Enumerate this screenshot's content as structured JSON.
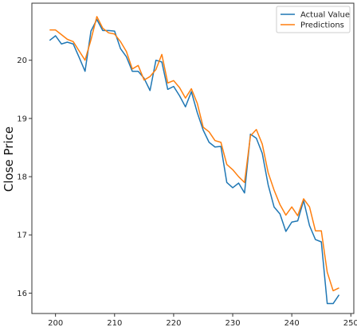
{
  "chart_data": {
    "type": "line",
    "title": "",
    "xlabel": "",
    "ylabel": "Close Price",
    "xlim": [
      196,
      250.5
    ],
    "ylim": [
      15.65,
      20.98
    ],
    "xticks": [
      200,
      210,
      220,
      230,
      240,
      250
    ],
    "xtick_labels": [
      "200",
      "210",
      "220",
      "230",
      "240",
      "250"
    ],
    "yticks": [
      16,
      17,
      18,
      19,
      20
    ],
    "ytick_labels": [
      "16",
      "17",
      "18",
      "19",
      "20"
    ],
    "grid": false,
    "legend_position": "top-right",
    "x": [
      199,
      200,
      201,
      202,
      203,
      204,
      205,
      206,
      207,
      208,
      209,
      210,
      211,
      212,
      213,
      214,
      215,
      216,
      217,
      218,
      219,
      220,
      221,
      222,
      223,
      224,
      225,
      226,
      227,
      228,
      229,
      230,
      231,
      232,
      233,
      234,
      235,
      236,
      237,
      238,
      239,
      240,
      241,
      242,
      243,
      244,
      245,
      246,
      247,
      248
    ],
    "series": [
      {
        "name": "Actual Value",
        "color": "#1f77b4",
        "values": [
          20.34,
          20.42,
          20.28,
          20.31,
          20.28,
          20.05,
          19.81,
          20.5,
          20.7,
          20.51,
          20.51,
          20.5,
          20.2,
          20.06,
          19.81,
          19.81,
          19.69,
          19.48,
          20.0,
          19.97,
          19.5,
          19.55,
          19.39,
          19.2,
          19.46,
          19.1,
          18.8,
          18.59,
          18.51,
          18.52,
          17.9,
          17.81,
          17.89,
          17.72,
          18.73,
          18.66,
          18.4,
          17.86,
          17.48,
          17.36,
          17.06,
          17.22,
          17.24,
          17.59,
          17.16,
          16.92,
          16.88,
          15.82,
          15.82,
          15.97
        ]
      },
      {
        "name": "Predictions",
        "color": "#ff7f0e",
        "values": [
          20.52,
          20.52,
          20.44,
          20.36,
          20.32,
          20.16,
          20.0,
          20.35,
          20.75,
          20.55,
          20.47,
          20.45,
          20.32,
          20.15,
          19.85,
          19.91,
          19.66,
          19.72,
          19.84,
          20.1,
          19.61,
          19.65,
          19.53,
          19.35,
          19.51,
          19.26,
          18.85,
          18.77,
          18.62,
          18.59,
          18.21,
          18.12,
          18.0,
          17.9,
          18.7,
          18.81,
          18.56,
          18.07,
          17.77,
          17.52,
          17.34,
          17.48,
          17.33,
          17.62,
          17.48,
          17.07,
          17.07,
          16.36,
          16.04,
          16.09
        ]
      }
    ]
  }
}
